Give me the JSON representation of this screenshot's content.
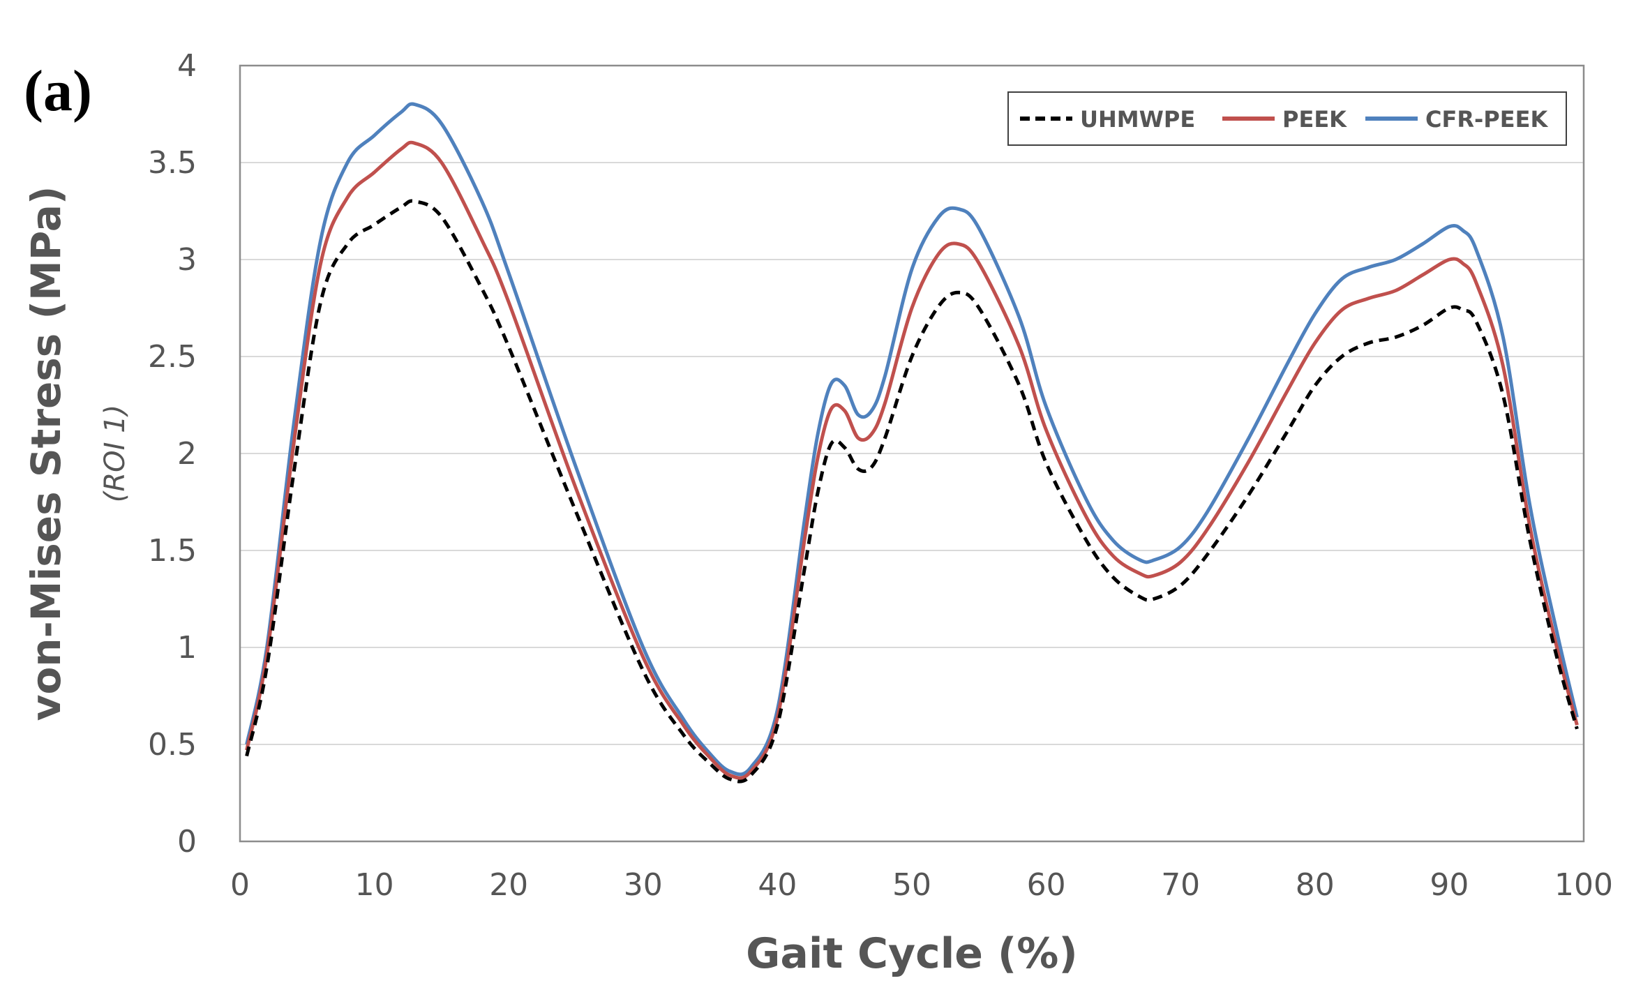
{
  "chart_data": {
    "type": "line",
    "panel_label": "(a)",
    "xlabel": "Gait Cycle (%)",
    "ylabel": "von-Mises Stress (MPa)",
    "ylabel_sub": "(ROI 1)",
    "xlim": [
      0,
      100
    ],
    "ylim": [
      0,
      4
    ],
    "xticks": [
      "0",
      "10",
      "20",
      "30",
      "40",
      "50",
      "60",
      "70",
      "80",
      "90",
      "100"
    ],
    "yticks": [
      "0",
      "0.5",
      "1",
      "1.5",
      "2",
      "2.5",
      "3",
      "3.5",
      "4"
    ],
    "grid": "horizontal",
    "legend_position": "top-right",
    "x": [
      0.5,
      2,
      4,
      6,
      8,
      10,
      12,
      13,
      15,
      18,
      20,
      25,
      30,
      33,
      35,
      36.5,
      38,
      40,
      42,
      43,
      44,
      45,
      46,
      47,
      48,
      50,
      52,
      53.5,
      55,
      58,
      60,
      63,
      65,
      67,
      68,
      70,
      72,
      75,
      78,
      80,
      82,
      84,
      86,
      88,
      90,
      91,
      92,
      94,
      96,
      98,
      99.5
    ],
    "series": [
      {
        "name": "UHMWPE",
        "color": "#000000",
        "dash": "dashed",
        "values": [
          0.44,
          0.9,
          1.9,
          2.78,
          3.08,
          3.18,
          3.27,
          3.3,
          3.22,
          2.85,
          2.55,
          1.7,
          0.88,
          0.55,
          0.4,
          0.32,
          0.34,
          0.6,
          1.4,
          1.8,
          2.05,
          2.03,
          1.92,
          1.93,
          2.08,
          2.5,
          2.76,
          2.83,
          2.75,
          2.35,
          1.95,
          1.55,
          1.36,
          1.26,
          1.25,
          1.32,
          1.48,
          1.78,
          2.12,
          2.35,
          2.5,
          2.57,
          2.6,
          2.66,
          2.75,
          2.74,
          2.68,
          2.3,
          1.55,
          0.95,
          0.58
        ]
      },
      {
        "name": "PEEK",
        "color": "#c0504d",
        "dash": "solid",
        "values": [
          0.47,
          0.96,
          2.05,
          2.98,
          3.32,
          3.45,
          3.57,
          3.6,
          3.5,
          3.1,
          2.78,
          1.82,
          0.95,
          0.6,
          0.43,
          0.34,
          0.36,
          0.64,
          1.55,
          1.98,
          2.23,
          2.22,
          2.08,
          2.1,
          2.26,
          2.75,
          3.03,
          3.08,
          2.98,
          2.55,
          2.12,
          1.67,
          1.47,
          1.38,
          1.37,
          1.44,
          1.61,
          1.95,
          2.33,
          2.57,
          2.74,
          2.8,
          2.84,
          2.92,
          3.0,
          2.98,
          2.88,
          2.45,
          1.62,
          1.0,
          0.6
        ]
      },
      {
        "name": "CFR-PEEK",
        "color": "#4f81bd",
        "dash": "solid",
        "values": [
          0.5,
          1.0,
          2.15,
          3.1,
          3.5,
          3.64,
          3.76,
          3.8,
          3.7,
          3.3,
          2.93,
          1.93,
          1.0,
          0.63,
          0.45,
          0.36,
          0.38,
          0.68,
          1.65,
          2.1,
          2.36,
          2.35,
          2.2,
          2.22,
          2.4,
          2.95,
          3.22,
          3.26,
          3.16,
          2.7,
          2.24,
          1.76,
          1.55,
          1.45,
          1.45,
          1.52,
          1.7,
          2.07,
          2.47,
          2.72,
          2.9,
          2.96,
          3.0,
          3.08,
          3.17,
          3.15,
          3.05,
          2.6,
          1.73,
          1.08,
          0.64
        ]
      }
    ]
  }
}
